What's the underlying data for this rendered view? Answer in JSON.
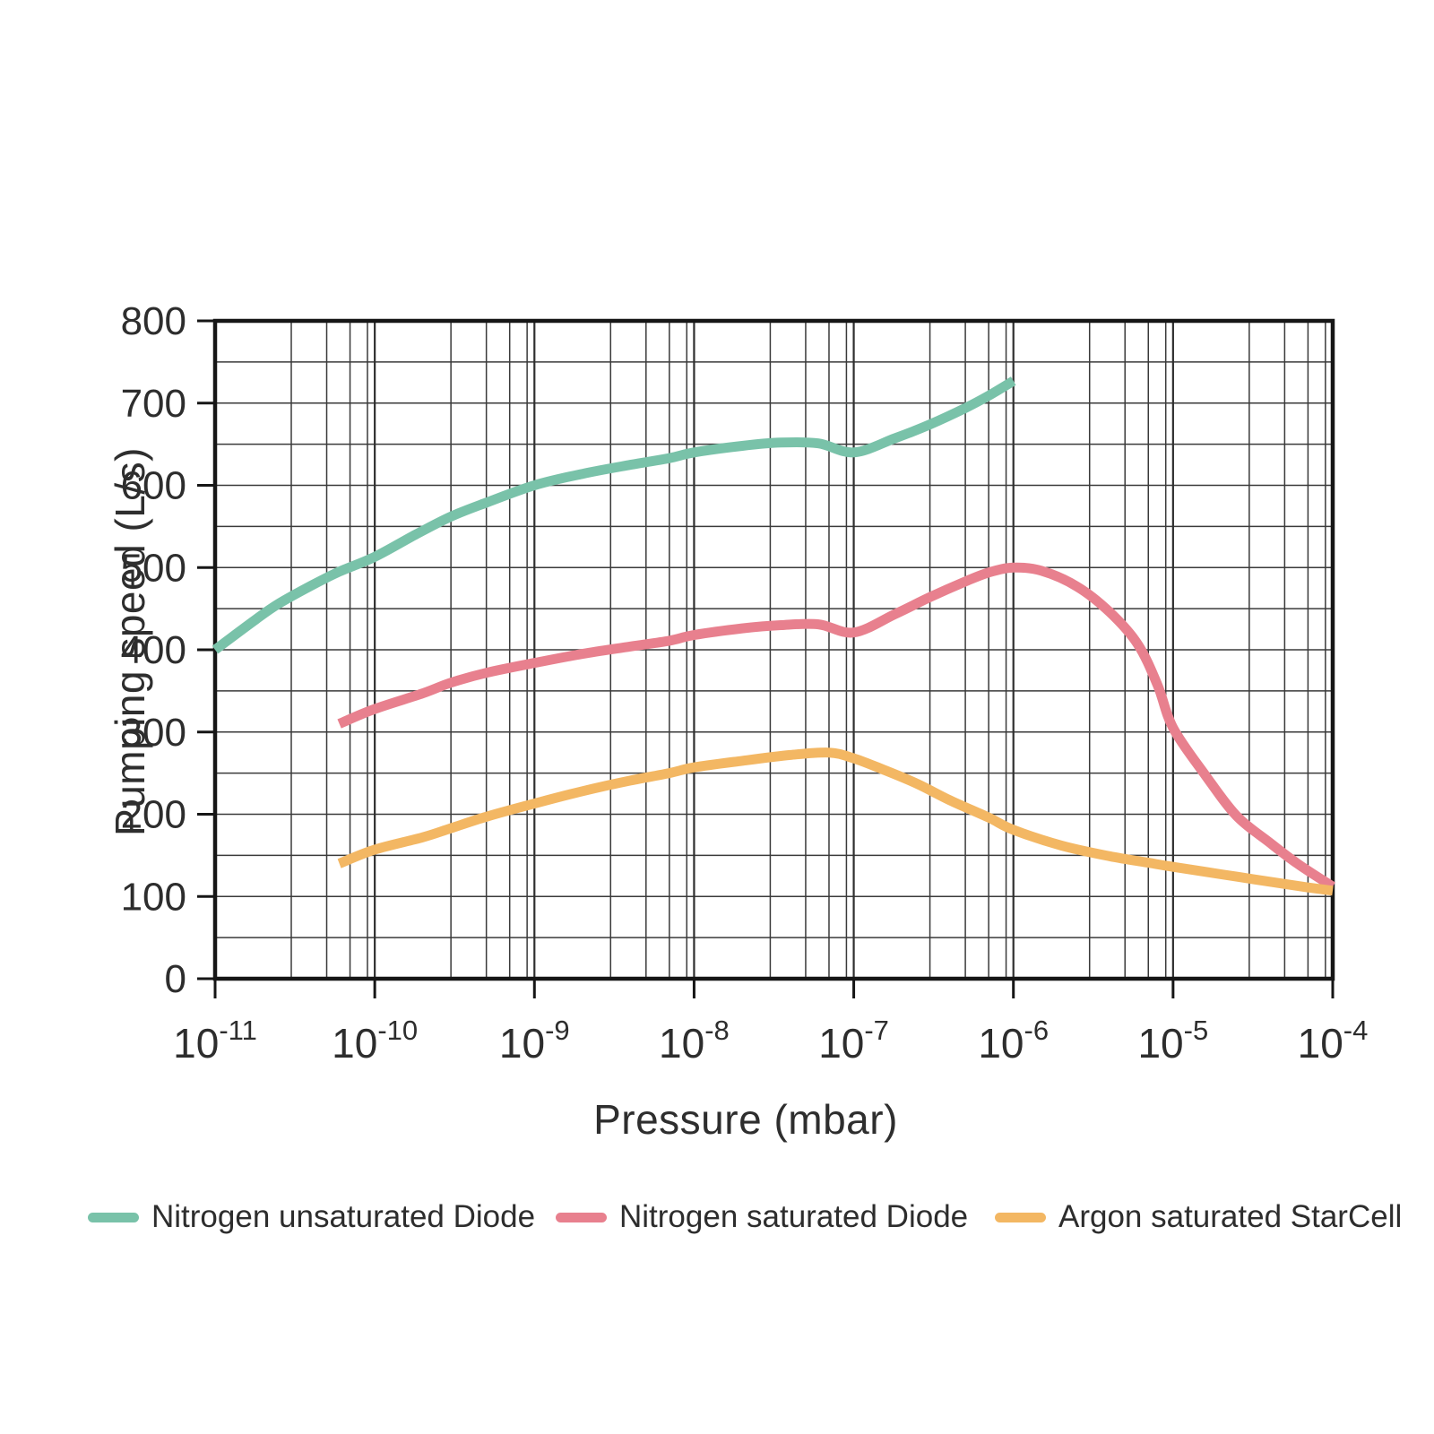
{
  "chart_data": {
    "type": "line",
    "title": "",
    "xlabel": "Pressure (mbar)",
    "ylabel": "Pumping speed (L/s)",
    "x_scale": "log",
    "x_range_exponents": [
      -11,
      -4
    ],
    "x_tick_exponents": [
      -11,
      -10,
      -9,
      -8,
      -7,
      -6,
      -5,
      -4
    ],
    "x_tick_base": "10",
    "x_minor_multipliers": [
      3,
      5,
      7,
      9
    ],
    "ylim": [
      0,
      800
    ],
    "y_grid_step": 50,
    "y_tick_labels": [
      "0",
      "100",
      "200",
      "300",
      "400",
      "500",
      "600",
      "700",
      "800"
    ],
    "grid": true,
    "legend_position": "bottom",
    "series": [
      {
        "name": "Nitrogen unsaturated Diode",
        "color": "#79c2a9",
        "points": [
          [
            1e-11,
            400
          ],
          [
            1.8e-11,
            437
          ],
          [
            2.5e-11,
            456
          ],
          [
            4e-11,
            478
          ],
          [
            6e-11,
            495
          ],
          [
            1e-10,
            513
          ],
          [
            1.8e-10,
            540
          ],
          [
            3e-10,
            562
          ],
          [
            5e-10,
            579
          ],
          [
            1e-09,
            600
          ],
          [
            2e-09,
            614
          ],
          [
            4e-09,
            625
          ],
          [
            7e-09,
            633
          ],
          [
            1e-08,
            640
          ],
          [
            2e-08,
            648
          ],
          [
            3.5e-08,
            652
          ],
          [
            6e-08,
            651
          ],
          [
            1e-07,
            640
          ],
          [
            1.8e-07,
            657
          ],
          [
            3e-07,
            674
          ],
          [
            5e-07,
            694
          ],
          [
            7e-07,
            709
          ],
          [
            1e-06,
            727
          ]
        ]
      },
      {
        "name": "Nitrogen saturated Diode",
        "color": "#e8808e",
        "points": [
          [
            6e-11,
            310
          ],
          [
            1e-10,
            328
          ],
          [
            2e-10,
            347
          ],
          [
            3e-10,
            360
          ],
          [
            5e-10,
            372
          ],
          [
            1e-09,
            384
          ],
          [
            2e-09,
            395
          ],
          [
            4e-09,
            404
          ],
          [
            7e-09,
            411
          ],
          [
            1e-08,
            418
          ],
          [
            2e-08,
            426
          ],
          [
            3.5e-08,
            430
          ],
          [
            6e-08,
            431
          ],
          [
            1e-07,
            421
          ],
          [
            1.8e-07,
            443
          ],
          [
            3e-07,
            464
          ],
          [
            5e-07,
            483
          ],
          [
            7e-07,
            494
          ],
          [
            1e-06,
            500
          ],
          [
            1.5e-06,
            496
          ],
          [
            2.5e-06,
            477
          ],
          [
            4e-06,
            446
          ],
          [
            6e-06,
            407
          ],
          [
            8e-06,
            357
          ],
          [
            1e-05,
            305
          ],
          [
            1.6e-05,
            247
          ],
          [
            2.5e-05,
            198
          ],
          [
            4e-05,
            166
          ],
          [
            6e-05,
            140
          ],
          [
            0.0001,
            112
          ]
        ]
      },
      {
        "name": "Argon saturated StarCell",
        "color": "#f3b763",
        "points": [
          [
            6e-11,
            140
          ],
          [
            1e-10,
            157
          ],
          [
            2e-10,
            172
          ],
          [
            3e-10,
            183
          ],
          [
            5e-10,
            197
          ],
          [
            1e-09,
            213
          ],
          [
            2e-09,
            228
          ],
          [
            4e-09,
            241
          ],
          [
            7e-09,
            250
          ],
          [
            1e-08,
            257
          ],
          [
            2e-08,
            265
          ],
          [
            4e-08,
            272
          ],
          [
            7e-08,
            275
          ],
          [
            1e-07,
            268
          ],
          [
            1.5e-07,
            255
          ],
          [
            2.5e-07,
            237
          ],
          [
            4e-07,
            217
          ],
          [
            7e-07,
            196
          ],
          [
            1e-06,
            181
          ],
          [
            2e-06,
            162
          ],
          [
            4e-06,
            149
          ],
          [
            7e-06,
            141
          ],
          [
            1e-05,
            136
          ],
          [
            2e-05,
            127
          ],
          [
            4e-05,
            118
          ],
          [
            7e-05,
            111
          ],
          [
            0.0001,
            107
          ]
        ]
      }
    ],
    "colors": {
      "grid_minor": "#3a3a3a",
      "grid_major": "#2f2f2f",
      "frame": "#161616",
      "tick_text": "#2d2d2d"
    }
  }
}
